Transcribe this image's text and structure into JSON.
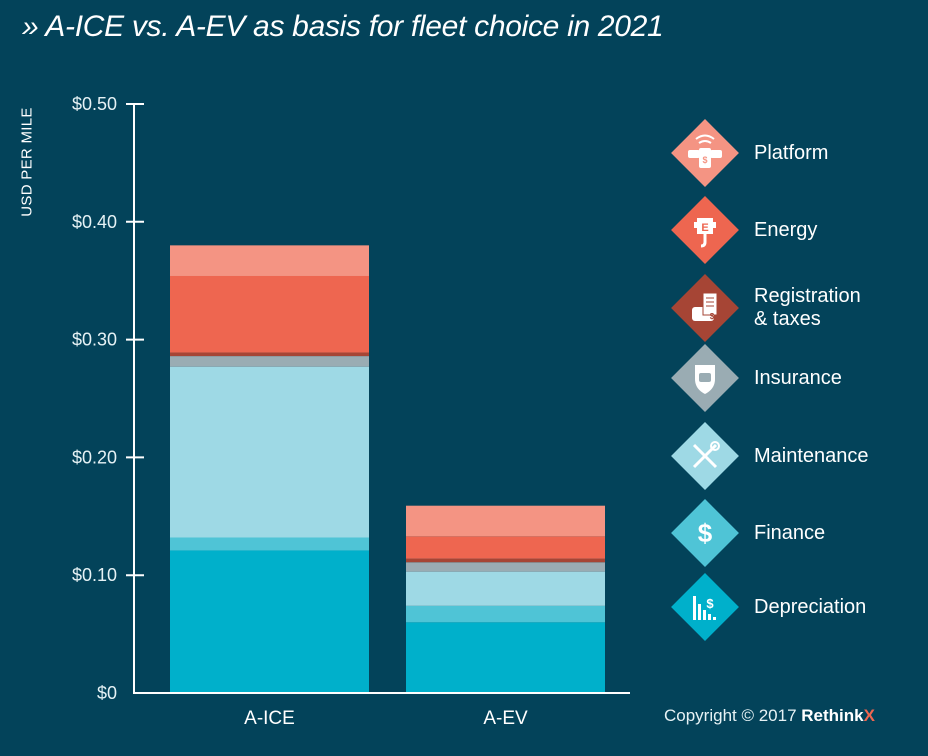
{
  "title": "» A-ICE vs. A-EV as basis for fleet choice in 2021",
  "footer": {
    "copyright_text": "Copyright © 2017",
    "brand": "Rethink",
    "brand_suffix": "X"
  },
  "legend": [
    {
      "label": "Platform",
      "icon": "platform-cars-phone-icon",
      "color": "#f49483"
    },
    {
      "label": "Energy",
      "icon": "energy-plug-icon",
      "color": "#ee6650"
    },
    {
      "label": "Registration\n& taxes",
      "icon": "registration-document-icon",
      "color": "#a64535"
    },
    {
      "label": "Insurance",
      "icon": "insurance-shield-car-icon",
      "color": "#9aacb3"
    },
    {
      "label": "Maintenance",
      "icon": "maintenance-tools-icon",
      "color": "#9ed9e5"
    },
    {
      "label": "Finance",
      "icon": "finance-dollar-icon",
      "color": "#4fc4d6"
    },
    {
      "label": "Depreciation",
      "icon": "depreciation-chart-icon",
      "color": "#00b0cb"
    }
  ],
  "chart_data": {
    "type": "bar",
    "stacked": true,
    "title": "» A-ICE vs. A-EV as basis for fleet choice in 2021",
    "xlabel": "",
    "ylabel": "USD PER MILE",
    "ylim": [
      0,
      0.5
    ],
    "yticks": [
      0,
      0.1,
      0.2,
      0.3,
      0.4,
      0.5
    ],
    "ytick_labels": [
      "$0",
      "$0.10",
      "$0.20",
      "$0.30",
      "$0.40",
      "$0.50"
    ],
    "grid": false,
    "legend_position": "right",
    "categories": [
      "A-ICE",
      "A-EV"
    ],
    "series": [
      {
        "name": "Depreciation",
        "color": "#00b0cb",
        "values": [
          0.121,
          0.06
        ]
      },
      {
        "name": "Finance",
        "color": "#4fc4d6",
        "values": [
          0.011,
          0.014
        ]
      },
      {
        "name": "Maintenance",
        "color": "#9ed9e5",
        "values": [
          0.145,
          0.029
        ]
      },
      {
        "name": "Insurance",
        "color": "#9aacb3",
        "values": [
          0.009,
          0.008
        ]
      },
      {
        "name": "Registration & taxes",
        "color": "#a64535",
        "values": [
          0.003,
          0.003
        ]
      },
      {
        "name": "Energy",
        "color": "#ee6650",
        "values": [
          0.065,
          0.019
        ]
      },
      {
        "name": "Platform",
        "color": "#f49483",
        "values": [
          0.026,
          0.026
        ]
      }
    ],
    "totals": [
      0.38,
      0.158
    ]
  }
}
